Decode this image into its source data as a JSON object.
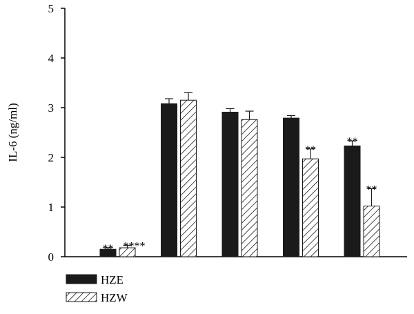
{
  "chart_data": {
    "type": "bar",
    "categories": [
      "",
      "",
      "",
      "",
      ""
    ],
    "ylabel": "IL-6 (ng/ml)",
    "xlabel": "",
    "ylim": [
      0,
      5
    ],
    "yticks": [
      0,
      1,
      2,
      3,
      4,
      5
    ],
    "grid": false,
    "legend_position": "bottom-left",
    "series": [
      {
        "name": "HZE",
        "pattern": "solid",
        "color": "#1a1a1a",
        "values": [
          0.15,
          3.08,
          2.91,
          2.79,
          2.23
        ],
        "errors": [
          0.03,
          0.1,
          0.07,
          0.05,
          0.1
        ],
        "annotations": [
          "**",
          "",
          "",
          "",
          "**"
        ]
      },
      {
        "name": "HZW",
        "pattern": "hatched",
        "color": "#1a1a1a",
        "values": [
          0.18,
          3.15,
          2.76,
          1.97,
          1.02
        ],
        "errors": [
          0.05,
          0.15,
          0.17,
          0.2,
          0.35
        ],
        "annotations": [
          "****",
          "",
          "",
          "**",
          "**"
        ]
      }
    ]
  }
}
